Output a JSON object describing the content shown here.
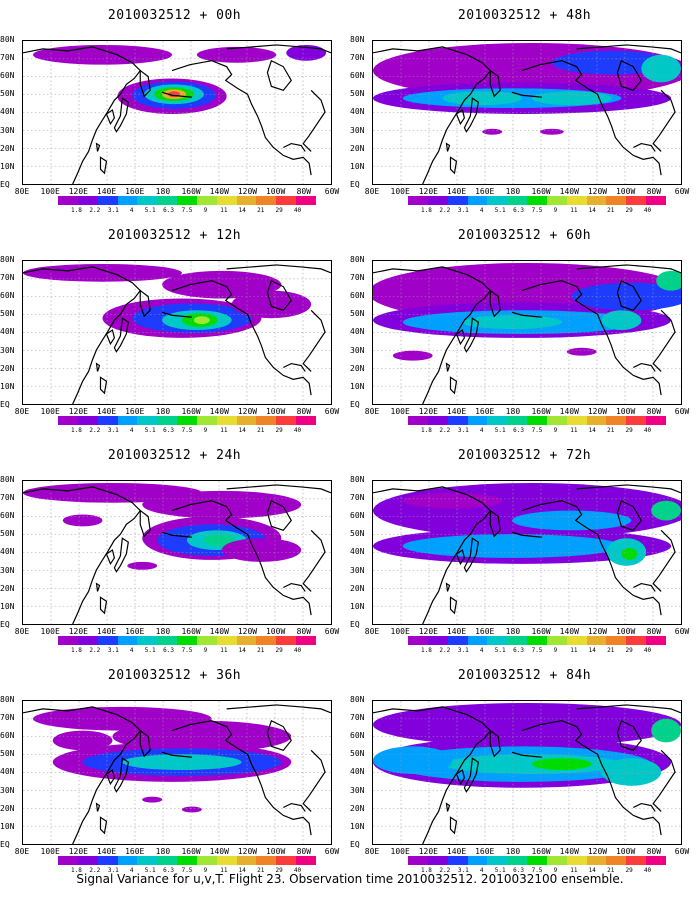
{
  "caption": "Signal Variance for u,v,T. Flight 23. Observation time 2010032512. 2010032100 ensemble.",
  "x_tick_labels": [
    "80E",
    "100E",
    "120E",
    "140E",
    "160E",
    "180",
    "160W",
    "140W",
    "120W",
    "100W",
    "80W",
    "60W"
  ],
  "y_tick_labels": [
    "80N",
    "70N",
    "60N",
    "50N",
    "40N",
    "30N",
    "20N",
    "10N",
    "EQ"
  ],
  "colorbar": {
    "labels": [
      "1.8",
      "2.2",
      "3.1",
      "4",
      "5.1",
      "6.3",
      "7.5",
      "9",
      "11",
      "14",
      "21",
      "29",
      "40"
    ],
    "colors": [
      "#a000c8",
      "#8200dc",
      "#1e3cff",
      "#00a0ff",
      "#00c8c8",
      "#00d28c",
      "#00dc00",
      "#a0e632",
      "#e6dc32",
      "#e6af2d",
      "#f08228",
      "#fa3c3c",
      "#f00082"
    ]
  },
  "panels": [
    {
      "title": "2010032512 + 00h",
      "lead_hours": 0
    },
    {
      "title": "2010032512 + 48h",
      "lead_hours": 48
    },
    {
      "title": "2010032512 + 12h",
      "lead_hours": 12
    },
    {
      "title": "2010032512 + 60h",
      "lead_hours": 60
    },
    {
      "title": "2010032512 + 24h",
      "lead_hours": 24
    },
    {
      "title": "2010032512 + 72h",
      "lead_hours": 72
    },
    {
      "title": "2010032512 + 36h",
      "lead_hours": 36
    },
    {
      "title": "2010032512 + 84h",
      "lead_hours": 84
    }
  ],
  "coastline_color": "#000000",
  "gridline_color": "#9a9a9a"
}
